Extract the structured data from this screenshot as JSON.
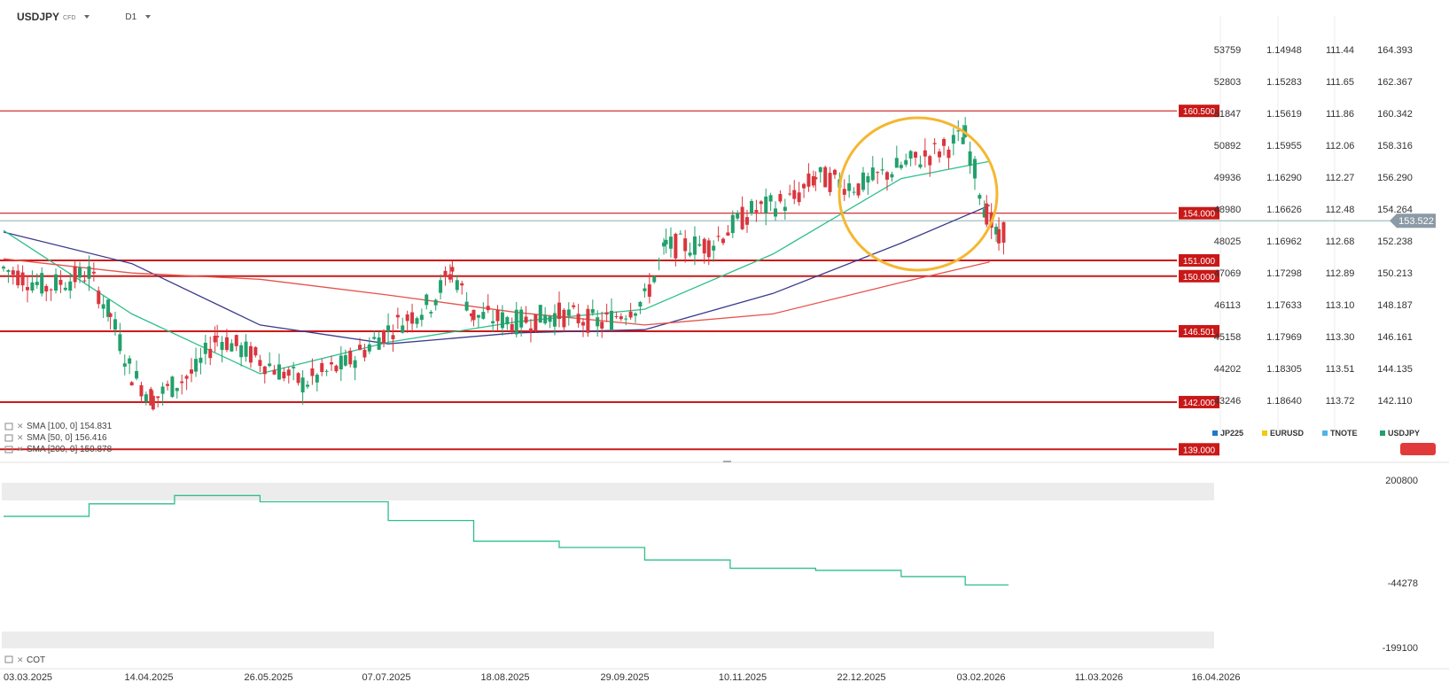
{
  "header": {
    "symbol": "USDJPY",
    "instrument_type": "CFD",
    "timeframe": "D1"
  },
  "axes": {
    "jp225": [
      "53759",
      "52803",
      "51847",
      "50892",
      "49936",
      "48980",
      "48025",
      "47069",
      "46113",
      "45158",
      "44202",
      "43246"
    ],
    "eurusd": [
      "1.14948",
      "1.15283",
      "1.15619",
      "1.15955",
      "1.16290",
      "1.16626",
      "1.16962",
      "1.17298",
      "1.17633",
      "1.17969",
      "1.18305",
      "1.18640"
    ],
    "tnote": [
      "111.44",
      "111.65",
      "111.86",
      "112.06",
      "112.27",
      "112.48",
      "112.68",
      "112.89",
      "113.10",
      "113.30",
      "113.51",
      "113.72"
    ],
    "usdjpy": [
      "164.393",
      "162.367",
      "160.342",
      "158.316",
      "156.290",
      "154.264",
      "152.238",
      "150.213",
      "148.187",
      "146.161",
      "144.135",
      "142.110"
    ]
  },
  "legend": [
    {
      "label": "JP225",
      "color": "#1f78d1"
    },
    {
      "label": "EURUSD",
      "color": "#f2c811"
    },
    {
      "label": "TNOTE",
      "color": "#4fb3e8"
    },
    {
      "label": "USDJPY",
      "color": "#22a06b"
    }
  ],
  "current_price": "153.522",
  "levels": [
    "160.500",
    "154.000",
    "151.000",
    "150.000",
    "146.501",
    "142.000",
    "139.000"
  ],
  "indicators": [
    {
      "label": "SMA [100, 0] 154.831",
      "color": "#3a3a8c"
    },
    {
      "label": "SMA [50, 0] 156.416",
      "color": "#2fbf8a"
    },
    {
      "label": "SMA [200, 0] 150.878",
      "color": "#e5534b"
    }
  ],
  "cot": {
    "label": "COT",
    "axis": [
      "200800",
      "-44278",
      "-199100"
    ]
  },
  "x_axis": [
    "03.03.2025",
    "14.04.2025",
    "26.05.2025",
    "07.07.2025",
    "18.08.2025",
    "29.09.2025",
    "10.11.2025",
    "22.12.2025",
    "03.02.2026",
    "11.03.2026",
    "16.04.2026"
  ],
  "chart_data": {
    "type": "candlestick",
    "y_axis_unit": "USDJPY price",
    "ylim": [
      141.3,
      165.0
    ],
    "x_range": [
      "2025-03-03",
      "2026-04-16"
    ],
    "series": [
      {
        "name": "SMA [100, 0]",
        "x": [
          "2025-03-03",
          "2025-04-14",
          "2025-05-26",
          "2025-07-07",
          "2025-08-18",
          "2025-09-29",
          "2025-11-10",
          "2025-12-22",
          "2026-01-20"
        ],
        "values": [
          152.8,
          150.8,
          146.9,
          145.7,
          146.4,
          146.6,
          148.9,
          152.1,
          154.5
        ]
      },
      {
        "name": "SMA [50, 0]",
        "x": [
          "2025-03-03",
          "2025-04-14",
          "2025-05-26",
          "2025-07-07",
          "2025-08-18",
          "2025-09-29",
          "2025-11-10",
          "2025-12-22",
          "2026-01-20"
        ],
        "values": [
          152.9,
          147.6,
          143.8,
          145.8,
          147.1,
          147.9,
          151.4,
          156.2,
          157.3
        ]
      },
      {
        "name": "SMA [200, 0]",
        "x": [
          "2025-03-03",
          "2025-04-14",
          "2025-05-26",
          "2025-07-07",
          "2025-08-18",
          "2025-09-29",
          "2025-11-10",
          "2025-12-22",
          "2026-01-20"
        ],
        "values": [
          151.1,
          150.2,
          149.8,
          148.8,
          147.7,
          146.9,
          147.6,
          149.6,
          150.9
        ]
      }
    ],
    "levels": [
      160.5,
      154.0,
      151.0,
      150.0,
      146.501,
      142.0,
      139.0
    ],
    "price": [
      [
        "2025-03-03",
        150.5
      ],
      [
        "2025-03-17",
        149.3
      ],
      [
        "2025-03-31",
        150.2
      ],
      [
        "2025-04-07",
        147.5
      ],
      [
        "2025-04-14",
        143.8
      ],
      [
        "2025-04-21",
        142.2
      ],
      [
        "2025-05-05",
        144.0
      ],
      [
        "2025-05-12",
        146.2
      ],
      [
        "2025-05-26",
        144.7
      ],
      [
        "2025-06-09",
        143.2
      ],
      [
        "2025-06-23",
        144.4
      ],
      [
        "2025-07-07",
        146.6
      ],
      [
        "2025-07-21",
        148.3
      ],
      [
        "2025-07-28",
        150.4
      ],
      [
        "2025-08-04",
        147.5
      ],
      [
        "2025-08-18",
        147.1
      ],
      [
        "2025-09-01",
        147.6
      ],
      [
        "2025-09-15",
        147.0
      ],
      [
        "2025-09-29",
        148.5
      ],
      [
        "2025-10-06",
        151.9
      ],
      [
        "2025-10-20",
        152.0
      ],
      [
        "2025-11-03",
        154.1
      ],
      [
        "2025-11-17",
        154.9
      ],
      [
        "2025-11-24",
        156.3
      ],
      [
        "2025-12-08",
        155.7
      ],
      [
        "2025-12-22",
        157.0
      ],
      [
        "2026-01-05",
        158.1
      ],
      [
        "2026-01-12",
        158.9
      ],
      [
        "2026-01-19",
        154.0
      ],
      [
        "2026-01-23",
        152.2
      ],
      [
        "2026-01-26",
        153.5
      ]
    ],
    "cot_net_positions": {
      "x": [
        "2025-03-03",
        "2025-03-31",
        "2025-04-28",
        "2025-05-26",
        "2025-07-07",
        "2025-08-04",
        "2025-09-01",
        "2025-09-29",
        "2025-10-27",
        "2025-11-24",
        "2025-12-22",
        "2026-01-12",
        "2026-01-26"
      ],
      "values": [
        120000,
        150000,
        170000,
        155000,
        110000,
        60000,
        45000,
        15000,
        -5000,
        -10000,
        -25000,
        -45000,
        -44278
      ],
      "ylim": [
        -199100,
        200800
      ]
    }
  }
}
